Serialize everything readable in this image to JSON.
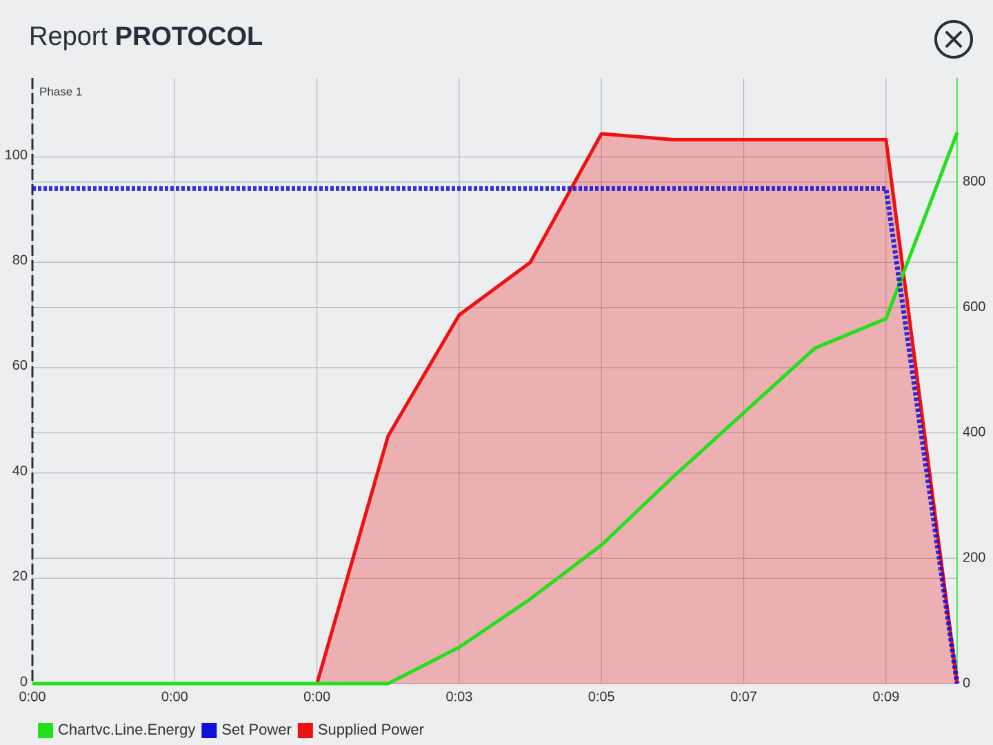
{
  "header": {
    "title": "Report",
    "title_emphasis": "PROTOCOL"
  },
  "chart_data": {
    "type": "line",
    "annotation": "Phase 1",
    "categories": [
      "0:00",
      null,
      "0:00",
      null,
      "0:00",
      null,
      "0:03",
      null,
      "0:05",
      null,
      "0:07",
      null,
      "0:09",
      null
    ],
    "ylim": [
      0,
      115
    ],
    "yticks": [
      0,
      20,
      40,
      60,
      80,
      100
    ],
    "y2lim": [
      0,
      966
    ],
    "y2ticks": [
      0,
      200,
      400,
      600,
      800
    ],
    "grid": true,
    "legend": "bottom-left",
    "series": [
      {
        "name": "Chartvc.Line.Energy",
        "color": "#22e01a",
        "axis": "y2",
        "values": [
          0,
          0,
          0,
          0,
          0,
          0,
          58,
          135,
          221,
          329,
          432,
          535,
          582,
          879
        ]
      },
      {
        "name": "Set Power",
        "color": "#1010dd",
        "values": [
          94,
          94,
          94,
          94,
          94,
          94,
          94,
          94,
          94,
          94,
          94,
          94,
          94,
          0
        ]
      },
      {
        "name": "Supplied Power",
        "color": "#ee1111",
        "fill": true,
        "values": [
          0,
          0,
          0,
          0,
          0,
          47,
          70,
          80,
          104.4,
          103.3,
          103.3,
          103.3,
          103.3,
          0
        ]
      }
    ]
  }
}
